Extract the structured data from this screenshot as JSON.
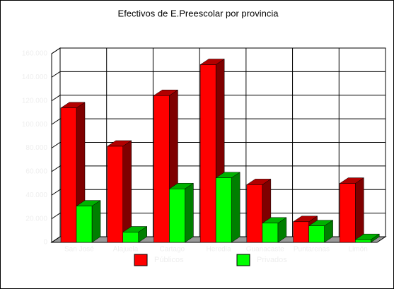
{
  "chart_data": {
    "type": "bar3d",
    "title": "Efectivos de E.Preescolar por provincia",
    "categories": [
      "San José",
      "Alajuela",
      "Cartago",
      "Heredia",
      "Guanacaste",
      "Puntarenas",
      "Limón"
    ],
    "series": [
      {
        "name": "Públicos",
        "color": "#ff0000",
        "values": [
          114000,
          81500,
          124500,
          150700,
          48900,
          17500,
          50000
        ]
      },
      {
        "name": "Privados",
        "color": "#00ff00",
        "values": [
          30800,
          8700,
          45400,
          54700,
          16300,
          14000,
          2300
        ]
      }
    ],
    "ylim": [
      0,
      160000
    ],
    "yticks": [
      {
        "value": 0,
        "label": "0"
      },
      {
        "value": 20000,
        "label": "20.000"
      },
      {
        "value": 40000,
        "label": "40.000"
      },
      {
        "value": 60000,
        "label": "60.000"
      },
      {
        "value": 80000,
        "label": "80.000"
      },
      {
        "value": 100000,
        "label": "100.000"
      },
      {
        "value": 120000,
        "label": "120.000"
      },
      {
        "value": 140000,
        "label": "140.000"
      },
      {
        "value": 160000,
        "label": "160.000"
      }
    ],
    "grid": true
  }
}
